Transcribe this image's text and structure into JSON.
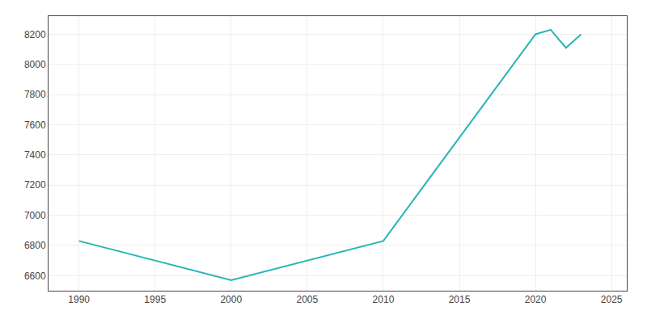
{
  "chart_data": {
    "type": "line",
    "x": [
      1990,
      2000,
      2010,
      2020,
      2021,
      2022,
      2023
    ],
    "values": [
      6830,
      6570,
      6830,
      8200,
      8230,
      8110,
      8200
    ],
    "color": "#2ab5b5",
    "xlim": [
      1988,
      2026
    ],
    "ylim": [
      6500,
      8320
    ],
    "xticks": [
      1990,
      1995,
      2000,
      2005,
      2010,
      2015,
      2020,
      2025
    ],
    "yticks": [
      6600,
      6800,
      7000,
      7200,
      7400,
      7600,
      7800,
      8000,
      8200
    ],
    "grid": true
  }
}
